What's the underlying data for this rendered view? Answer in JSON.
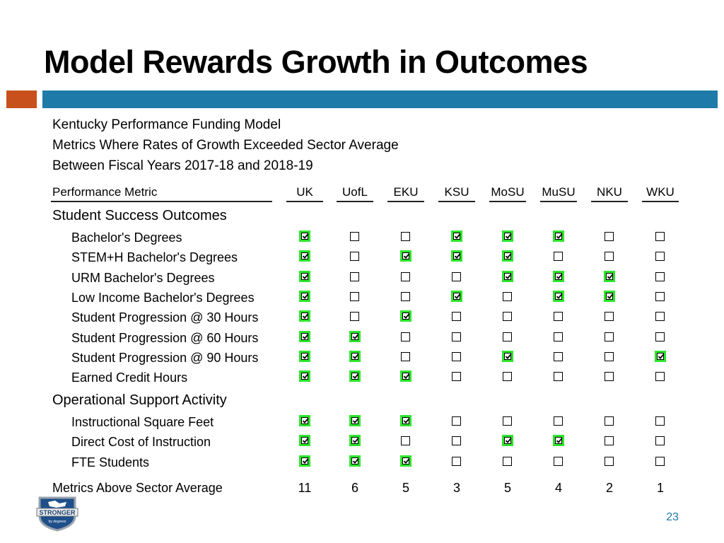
{
  "title": "Model Rewards Growth in Outcomes",
  "subtitle": {
    "line1": "Kentucky Performance Funding Model",
    "line2": "Metrics Where Rates of Growth Exceeded Sector Average",
    "line3": "Between Fiscal Years 2017-18 and 2018-19"
  },
  "table": {
    "metric_header": "Performance Metric",
    "columns": [
      "UK",
      "UofL",
      "EKU",
      "KSU",
      "MoSU",
      "MuSU",
      "NKU",
      "WKU"
    ],
    "sections": [
      {
        "name": "Student Success Outcomes",
        "rows": [
          {
            "label": "Bachelor's Degrees",
            "checks": [
              true,
              false,
              false,
              true,
              true,
              true,
              false,
              false
            ]
          },
          {
            "label": "STEM+H Bachelor's Degrees",
            "checks": [
              true,
              false,
              true,
              true,
              true,
              false,
              false,
              false
            ]
          },
          {
            "label": "URM Bachelor's Degrees",
            "checks": [
              true,
              false,
              false,
              false,
              true,
              true,
              true,
              false
            ]
          },
          {
            "label": "Low Income Bachelor's Degrees",
            "checks": [
              true,
              false,
              false,
              true,
              false,
              true,
              true,
              false
            ]
          },
          {
            "label": "Student Progression @ 30 Hours",
            "checks": [
              true,
              false,
              true,
              false,
              false,
              false,
              false,
              false
            ]
          },
          {
            "label": "Student Progression @ 60 Hours",
            "checks": [
              true,
              true,
              false,
              false,
              false,
              false,
              false,
              false
            ]
          },
          {
            "label": "Student Progression @ 90 Hours",
            "checks": [
              true,
              true,
              false,
              false,
              true,
              false,
              false,
              true
            ]
          },
          {
            "label": "Earned Credit Hours",
            "checks": [
              true,
              true,
              true,
              false,
              false,
              false,
              false,
              false
            ]
          }
        ]
      },
      {
        "name": "Operational Support Activity",
        "rows": [
          {
            "label": "Instructional Square Feet",
            "checks": [
              true,
              true,
              true,
              false,
              false,
              false,
              false,
              false
            ]
          },
          {
            "label": "Direct Cost of Instruction",
            "checks": [
              true,
              true,
              false,
              false,
              true,
              true,
              false,
              false
            ]
          },
          {
            "label": "FTE Students",
            "checks": [
              true,
              true,
              true,
              false,
              false,
              false,
              false,
              false
            ]
          }
        ]
      }
    ],
    "totals_label": "Metrics Above Sector Average",
    "totals": [
      "11",
      "6",
      "5",
      "3",
      "5",
      "4",
      "2",
      "1"
    ]
  },
  "logo": {
    "main": "STRONGER",
    "sub": "by degrees"
  },
  "page_number": "23",
  "colors": {
    "accent_blue": "#1e7aa8",
    "accent_orange": "#c8501c",
    "check_highlight": "#2ee52e"
  }
}
